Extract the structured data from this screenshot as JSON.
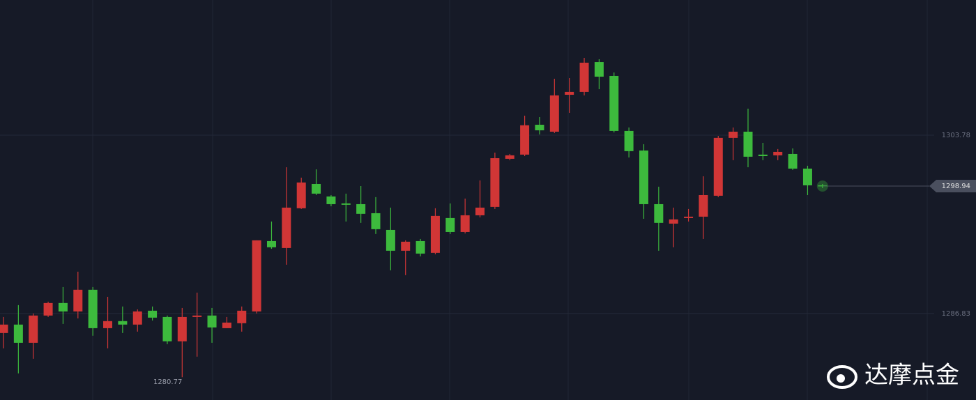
{
  "chart_data": {
    "type": "candlestick",
    "open": [
      1284.97,
      1285.77,
      1284.04,
      1286.63,
      1287.82,
      1287.02,
      1289.08,
      1285.43,
      1286.1,
      1285.77,
      1287.09,
      1286.49,
      1284.18,
      1286.49,
      1286.63,
      1285.43,
      1285.9,
      1287.02,
      1293.71,
      1293.05,
      1296.83,
      1299.14,
      1297.95,
      1297.29,
      1297.22,
      1296.36,
      1294.77,
      1292.79,
      1293.71,
      1292.59,
      1295.9,
      1294.57,
      1296.16,
      1296.96,
      1301.53,
      1301.93,
      1304.77,
      1304.11,
      1307.62,
      1307.89,
      1310.73,
      1309.41,
      1304.18,
      1302.32,
      1297.22,
      1295.37,
      1295.9,
      1296.03,
      1298.02,
      1303.52,
      1304.11,
      1301.93,
      1301.86,
      1301.99,
      1300.6,
      1299.01
    ],
    "high": [
      1286.49,
      1287.62,
      1286.83,
      1287.95,
      1289.34,
      1290.8,
      1289.34,
      1288.41,
      1287.49,
      1287.22,
      1287.49,
      1286.63,
      1287.35,
      1288.81,
      1287.35,
      1286.49,
      1287.49,
      1293.78,
      1295.57,
      1300.73,
      1299.74,
      1300.53,
      1298.08,
      1298.22,
      1298.94,
      1297.89,
      1296.89,
      1293.78,
      1293.91,
      1296.83,
      1297.29,
      1297.75,
      1299.48,
      1302.12,
      1301.99,
      1305.63,
      1305.5,
      1309.14,
      1309.21,
      1311.13,
      1311.0,
      1309.74,
      1304.51,
      1302.92,
      1298.88,
      1296.89,
      1296.76,
      1299.87,
      1303.71,
      1304.51,
      1306.3,
      1303.05,
      1302.46,
      1302.52,
      1300.87,
      1299.14
    ],
    "low": [
      1283.51,
      1281.13,
      1282.52,
      1286.49,
      1285.83,
      1286.36,
      1284.71,
      1283.51,
      1284.97,
      1285.1,
      1286.16,
      1283.91,
      1280.77,
      1282.72,
      1284.04,
      1285.43,
      1285.1,
      1286.83,
      1292.98,
      1291.46,
      1296.76,
      1298.08,
      1297.02,
      1295.57,
      1295.44,
      1294.38,
      1290.93,
      1290.47,
      1292.26,
      1292.45,
      1294.38,
      1294.44,
      1295.96,
      1296.76,
      1301.4,
      1301.79,
      1303.85,
      1303.98,
      1305.9,
      1307.56,
      1308.15,
      1304.04,
      1301.66,
      1295.83,
      1292.79,
      1293.12,
      1295.57,
      1293.91,
      1297.89,
      1301.4,
      1300.73,
      1301.4,
      1301.4,
      1300.47,
      1298.08,
      1298.75
    ],
    "close": [
      1285.77,
      1284.04,
      1286.63,
      1287.82,
      1287.02,
      1289.08,
      1285.43,
      1286.1,
      1285.77,
      1287.02,
      1286.43,
      1284.18,
      1286.49,
      1286.63,
      1285.5,
      1285.96,
      1287.09,
      1293.78,
      1293.12,
      1296.89,
      1299.28,
      1298.22,
      1297.22,
      1297.16,
      1296.3,
      1294.84,
      1292.79,
      1293.65,
      1292.52,
      1296.1,
      1294.57,
      1296.16,
      1296.89,
      1301.59,
      1301.86,
      1304.72,
      1304.24,
      1307.56,
      1307.89,
      1310.67,
      1309.34,
      1304.18,
      1302.26,
      1297.22,
      1295.44,
      1295.77,
      1296.03,
      1298.08,
      1303.52,
      1304.11,
      1301.73,
      1301.79,
      1302.19,
      1300.6,
      1299.01,
      1298.94
    ],
    "up_color": "#d13636",
    "down_color": "#3dba3d",
    "ylim": [
      1278.6,
      1316.63
    ],
    "yticks": [
      1286.83,
      1303.78
    ],
    "grid": true,
    "last_price": 1298.94,
    "min_label": 1280.77,
    "watermark": "达摩点金"
  }
}
